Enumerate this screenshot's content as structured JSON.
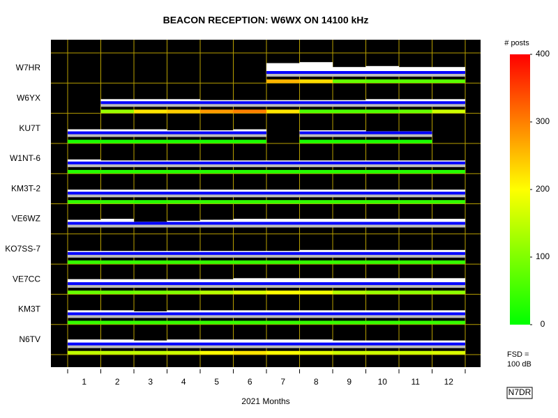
{
  "chart_data": {
    "type": "beacon-strips",
    "title": "BEACON RECEPTION: W6WX ON 14100 kHz",
    "x_label": "2021 Months",
    "categories": [
      "1",
      "2",
      "3",
      "4",
      "5",
      "6",
      "7",
      "8",
      "9",
      "10",
      "11",
      "12"
    ],
    "colorbar_title": "# posts",
    "clim": [
      0,
      400
    ],
    "cticks": [
      0,
      100,
      200,
      300,
      400
    ],
    "colorscale": [
      "#00ff00",
      "#ffff00",
      "#ff0000"
    ],
    "fsd_label": "FSD =",
    "fsd_value": "100 dB",
    "credit": "N7DR",
    "stations": [
      {
        "name": "W7HR",
        "signal": [
          null,
          null,
          null,
          null,
          null,
          null,
          55,
          60,
          35,
          40,
          35,
          35
        ],
        "posts": [
          null,
          null,
          null,
          null,
          null,
          null,
          260,
          230,
          80,
          70,
          70,
          70
        ]
      },
      {
        "name": "W6YX",
        "signal": [
          null,
          25,
          25,
          25,
          20,
          20,
          20,
          20,
          20,
          25,
          25,
          25
        ],
        "posts": [
          null,
          120,
          220,
          240,
          280,
          300,
          220,
          60,
          60,
          60,
          80,
          160
        ]
      },
      {
        "name": "KU7T",
        "signal": [
          25,
          25,
          25,
          20,
          20,
          25,
          null,
          20,
          20,
          15,
          15,
          null
        ],
        "posts": [
          20,
          20,
          20,
          20,
          20,
          20,
          null,
          20,
          20,
          20,
          20,
          null
        ]
      },
      {
        "name": "W1NT-6",
        "signal": [
          25,
          20,
          20,
          20,
          20,
          20,
          20,
          20,
          20,
          20,
          20,
          20
        ],
        "posts": [
          30,
          30,
          30,
          30,
          30,
          30,
          30,
          30,
          30,
          30,
          30,
          30
        ]
      },
      {
        "name": "KM3T-2",
        "signal": [
          25,
          25,
          25,
          25,
          25,
          25,
          25,
          25,
          25,
          25,
          25,
          25
        ],
        "posts": [
          40,
          40,
          30,
          40,
          40,
          40,
          40,
          40,
          40,
          40,
          40,
          40
        ]
      },
      {
        "name": "VE6WZ",
        "signal": [
          25,
          30,
          15,
          20,
          25,
          30,
          30,
          30,
          30,
          30,
          30,
          30
        ],
        "posts": [
          null,
          null,
          null,
          null,
          null,
          null,
          null,
          null,
          null,
          null,
          null,
          null
        ]
      },
      {
        "name": "KO7SS-7",
        "signal": [
          20,
          20,
          20,
          20,
          20,
          20,
          20,
          25,
          25,
          25,
          25,
          25
        ],
        "posts": [
          40,
          40,
          40,
          40,
          40,
          40,
          40,
          40,
          40,
          40,
          40,
          40
        ]
      },
      {
        "name": "VE7CC",
        "signal": [
          30,
          30,
          30,
          30,
          30,
          35,
          35,
          35,
          35,
          35,
          35,
          35
        ],
        "posts": [
          80,
          80,
          90,
          100,
          140,
          170,
          200,
          190,
          140,
          120,
          110,
          110
        ]
      },
      {
        "name": "KM3T",
        "signal": [
          25,
          25,
          20,
          25,
          25,
          25,
          25,
          25,
          25,
          25,
          25,
          25
        ],
        "posts": [
          40,
          40,
          40,
          40,
          40,
          40,
          40,
          40,
          40,
          40,
          40,
          40
        ]
      },
      {
        "name": "N6TV",
        "signal": [
          30,
          30,
          25,
          30,
          30,
          30,
          30,
          30,
          25,
          25,
          25,
          25
        ],
        "posts": [
          150,
          150,
          150,
          160,
          200,
          220,
          200,
          180,
          160,
          160,
          160,
          170
        ]
      }
    ]
  }
}
